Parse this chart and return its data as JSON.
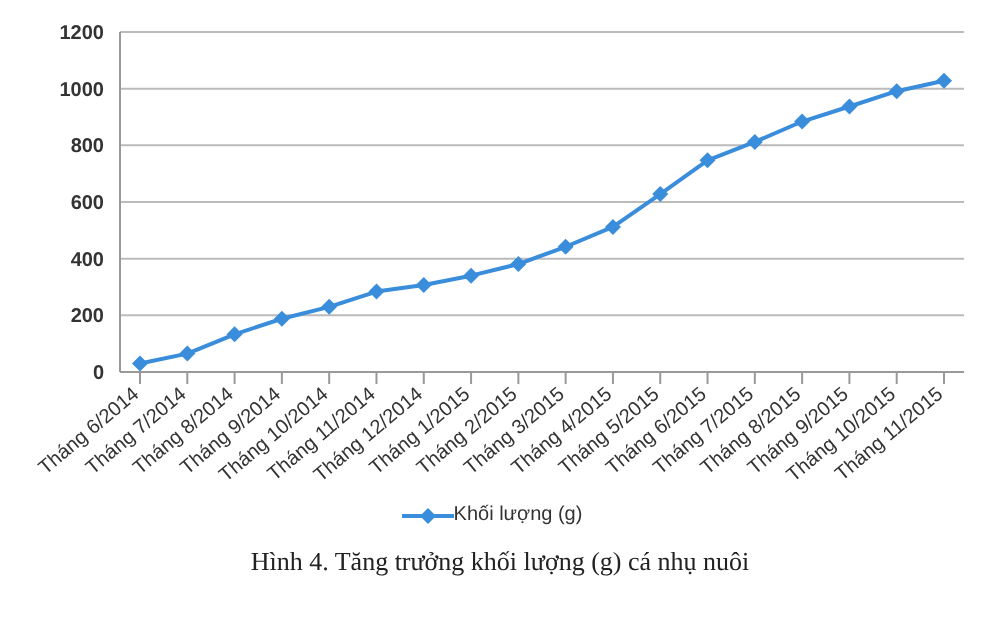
{
  "chart_data": {
    "type": "line",
    "title": "Hình 4. Tăng trưởng khối lượng (g) cá nhụ nuôi",
    "categories": [
      "Tháng 6/2014",
      "Tháng 7/2014",
      "Tháng 8/2014",
      "Tháng 9/2014",
      "Tháng 10/2014",
      "Tháng 11/2014",
      "Tháng 12/2014",
      "Tháng 1/2015",
      "Tháng 2/2015",
      "Tháng 3/2015",
      "Tháng 4/2015",
      "Tháng 5/2015",
      "Tháng 6/2015",
      "Tháng 7/2015",
      "Tháng 8/2015",
      "Tháng 9/2015",
      "Tháng 10/2015",
      "Tháng 11/2015"
    ],
    "series": [
      {
        "name": "Khối lượng (g)",
        "color": "#3a8ddb",
        "values": [
          30,
          65,
          133,
          188,
          230,
          284,
          307,
          340,
          381,
          442,
          512,
          628,
          747,
          812,
          884,
          937,
          991,
          1028
        ]
      }
    ],
    "ylim": [
      0,
      1200
    ],
    "yticks": [
      0,
      200,
      400,
      600,
      800,
      1000,
      1200
    ],
    "grid": "y",
    "legend": "bottom",
    "marker": "diamond",
    "line_style": "solid"
  }
}
